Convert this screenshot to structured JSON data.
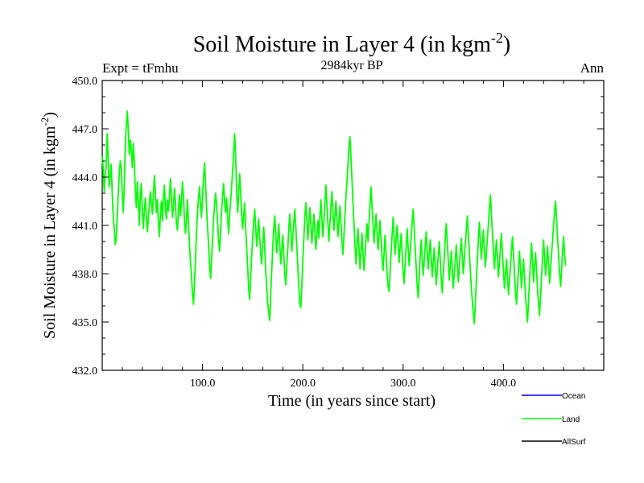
{
  "chart_data": {
    "type": "line",
    "title": "Soil Moisture in Layer 4 (in kgm",
    "title_superscript": "-2",
    "title_close": ")",
    "subtitle_left": "Expt = tFmhu",
    "subtitle_center": "2984kyr BP",
    "subtitle_right": "Ann",
    "xlabel": "Time (in years since start)",
    "ylabel": "Soil Moisture in Layer 4 (in kgm",
    "ylabel_superscript": "-2",
    "ylabel_close": ")",
    "xlim": [
      0,
      500
    ],
    "ylim": [
      432.0,
      450.0
    ],
    "xticks": [
      100,
      200,
      300,
      400
    ],
    "xtick_labels": [
      "100.0",
      "200.0",
      "300.0",
      "400.0"
    ],
    "yticks": [
      432,
      435,
      438,
      441,
      444,
      447,
      450
    ],
    "ytick_labels": [
      "432.0",
      "435.0",
      "438.0",
      "441.0",
      "444.0",
      "447.0",
      "450.0"
    ],
    "legend": [
      {
        "name": "Ocean",
        "color": "#0000ff"
      },
      {
        "name": "Land",
        "color": "#00ff00"
      },
      {
        "name": "AllSurf",
        "color": "#000000"
      }
    ],
    "series": [
      {
        "name": "Land",
        "color": "#00ff00",
        "x_start": 0,
        "x_step": 1,
        "values": [
          445.3,
          444.5,
          443.1,
          444.2,
          444.7,
          446.7,
          445.0,
          443.4,
          444.1,
          444.8,
          442.9,
          441.5,
          440.8,
          439.8,
          440.2,
          441.6,
          443.0,
          444.2,
          445.0,
          444.6,
          443.0,
          441.8,
          443.5,
          446.0,
          447.2,
          448.1,
          446.9,
          445.4,
          446.3,
          445.7,
          444.6,
          446.1,
          444.9,
          443.2,
          442.1,
          443.7,
          442.5,
          441.0,
          442.8,
          443.6,
          442.0,
          440.8,
          441.9,
          442.7,
          441.5,
          440.6,
          441.4,
          442.3,
          443.1,
          442.4,
          441.7,
          442.9,
          444.1,
          443.0,
          441.8,
          442.6,
          441.2,
          440.3,
          441.6,
          442.5,
          441.3,
          442.8,
          443.5,
          442.1,
          441.4,
          442.6,
          441.9,
          442.8,
          443.9,
          442.7,
          441.5,
          442.2,
          443.3,
          442.4,
          441.1,
          440.7,
          441.8,
          442.9,
          441.6,
          442.4,
          443.7,
          442.8,
          441.3,
          440.5,
          441.4,
          442.6,
          441.1,
          439.8,
          438.7,
          437.9,
          436.7,
          436.1,
          437.4,
          438.9,
          440.6,
          441.8,
          442.7,
          443.4,
          442.2,
          441.5,
          442.8,
          444.0,
          444.9,
          443.7,
          442.1,
          440.9,
          439.8,
          438.6,
          437.7,
          438.8,
          440.1,
          441.4,
          442.2,
          443.0,
          442.3,
          441.2,
          440.1,
          439.4,
          440.6,
          441.9,
          442.8,
          443.6,
          442.5,
          441.8,
          442.7,
          441.4,
          440.5,
          441.6,
          442.5,
          443.4,
          444.4,
          445.5,
          446.7,
          445.3,
          443.2,
          441.8,
          442.9,
          444.2,
          443.1,
          441.7,
          440.8,
          441.6,
          442.4,
          440.9,
          439.6,
          438.4,
          437.1,
          436.4,
          437.8,
          439.1,
          440.2,
          441.3,
          442.0,
          440.9,
          439.7,
          440.5,
          441.4,
          440.3,
          439.2,
          438.6,
          439.8,
          440.9,
          439.6,
          438.2,
          437.1,
          436.2,
          435.6,
          435.1,
          436.8,
          438.2,
          439.6,
          440.8,
          441.6,
          440.4,
          439.3,
          440.2,
          441.1,
          439.8,
          438.6,
          439.5,
          440.4,
          439.2,
          438.0,
          437.3,
          438.5,
          439.6,
          440.8,
          441.7,
          440.6,
          439.4,
          440.3,
          441.2,
          442.0,
          440.9,
          439.7,
          438.4,
          437.2,
          436.1,
          435.9,
          437.3,
          438.8,
          440.2,
          441.5,
          442.4,
          441.3,
          440.1,
          441.2,
          442.1,
          441.0,
          439.9,
          440.8,
          441.7,
          440.6,
          439.5,
          440.4,
          441.3,
          440.2,
          441.5,
          442.6,
          441.4,
          440.3,
          441.2,
          442.4,
          443.5,
          442.3,
          441.1,
          440.0,
          441.1,
          442.2,
          443.1,
          441.9,
          440.7,
          441.6,
          442.5,
          441.4,
          440.3,
          441.3,
          442.2,
          441.1,
          440.0,
          439.2,
          440.4,
          441.6,
          442.8,
          443.7,
          444.8,
          445.9,
          446.5,
          445.2,
          443.8,
          442.4,
          441.1,
          439.8,
          438.6,
          439.7,
          440.8,
          439.5,
          438.3,
          439.4,
          440.5,
          439.3,
          438.2,
          439.1,
          440.2,
          441.1,
          440.0,
          441.2,
          442.3,
          443.4,
          442.2,
          441.0,
          439.9,
          440.8,
          441.7,
          440.6,
          439.5,
          440.4,
          441.3,
          440.1,
          439.0,
          438.2,
          439.3,
          440.4,
          439.2,
          438.0,
          437.2,
          436.9,
          438.1,
          439.3,
          440.4,
          441.5,
          440.3,
          439.2,
          440.1,
          441.0,
          439.9,
          438.7,
          439.6,
          440.5,
          439.3,
          438.1,
          437.4,
          438.6,
          439.7,
          440.8,
          439.6,
          438.5,
          439.4,
          440.3,
          441.2,
          442.0,
          440.8,
          439.6,
          438.4,
          437.3,
          436.5,
          437.8,
          439.0,
          440.1,
          439.0,
          437.9,
          438.8,
          439.7,
          440.6,
          439.4,
          438.3,
          439.2,
          440.1,
          439.0,
          437.8,
          438.7,
          439.6,
          438.4,
          437.3,
          438.2,
          439.1,
          440.0,
          438.9,
          437.7,
          436.8,
          437.9,
          439.0,
          440.2,
          441.1,
          440.0,
          438.8,
          437.6,
          438.5,
          439.4,
          438.3,
          437.1,
          438.0,
          438.9,
          439.8,
          438.6,
          437.5,
          438.4,
          439.3,
          440.2,
          439.1,
          438.0,
          438.9,
          439.8,
          440.7,
          441.6,
          440.5,
          439.3,
          438.2,
          437.1,
          436.3,
          435.5,
          434.9,
          436.2,
          437.6,
          438.9,
          440.1,
          441.2,
          440.0,
          438.9,
          439.8,
          440.7,
          439.5,
          438.4,
          439.3,
          440.2,
          441.1,
          442.0,
          442.9,
          441.7,
          440.5,
          439.4,
          438.3,
          439.2,
          440.1,
          439.0,
          437.8,
          438.7,
          439.6,
          440.5,
          439.3,
          438.2,
          437.1,
          438.0,
          438.9,
          437.8,
          436.7,
          437.6,
          438.5,
          439.4,
          440.3,
          439.2,
          438.0,
          436.9,
          436.1,
          437.2,
          438.3,
          439.4,
          438.3,
          437.1,
          438.0,
          438.9,
          437.8,
          436.6,
          435.8,
          435.0,
          436.3,
          437.6,
          438.8,
          439.9,
          438.7,
          437.5,
          438.4,
          439.3,
          438.2,
          437.0,
          436.2,
          435.4,
          436.6,
          437.8,
          439.0,
          440.1,
          439.0,
          437.9,
          438.8,
          439.7,
          438.6,
          437.4,
          438.3,
          439.2,
          440.1,
          441.0,
          441.9,
          442.5,
          441.3,
          440.2,
          439.1,
          438.0,
          437.2,
          438.3,
          439.4,
          440.3,
          439.2,
          438.5
        ]
      }
    ]
  }
}
